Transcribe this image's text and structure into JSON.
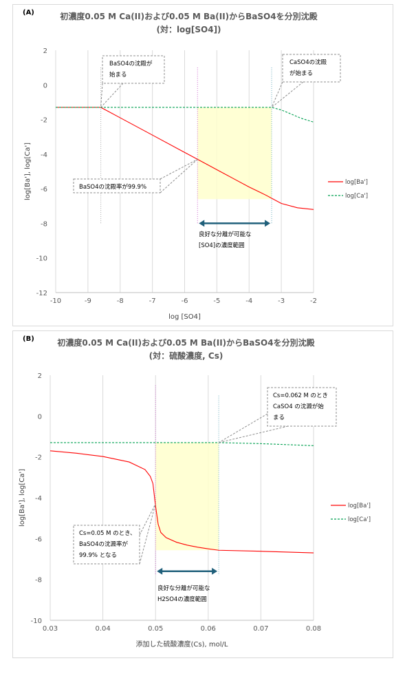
{
  "chart_data": [
    {
      "type": "line",
      "panel_tag": "(A)",
      "title": "初濃度0.05 M Ca(II)および0.05 M Ba(II)からBaSO4を分別沈殿",
      "subtitle": "(対：log[SO4])",
      "xlabel": "log [SO4]",
      "ylabel": "log[Ba'], log[Ca']",
      "xlim": [
        -10,
        -2
      ],
      "ylim": [
        -12,
        2
      ],
      "xticks": [
        "-10",
        "-9",
        "-8",
        "-7",
        "-6",
        "-5",
        "-4",
        "-3",
        "-2"
      ],
      "yticks": [
        "2",
        "0",
        "-2",
        "-4",
        "-6",
        "-8",
        "-10",
        "-12"
      ],
      "grid": "vertical",
      "legend_position": "right",
      "series": [
        {
          "name": "log[Ba']",
          "color": "#ff0000",
          "style": "solid",
          "x": [
            -10,
            -8.6,
            -8,
            -7,
            -6,
            -5.6,
            -5,
            -4.5,
            -4,
            -3.5,
            -3.3,
            -3,
            -2.5,
            -2
          ],
          "y": [
            -1.3,
            -1.3,
            -1.9,
            -2.9,
            -3.9,
            -4.3,
            -4.9,
            -5.4,
            -5.9,
            -6.35,
            -6.55,
            -6.85,
            -7.1,
            -7.2
          ]
        },
        {
          "name": "log[Ca']",
          "color": "#00a050",
          "style": "dashed",
          "x": [
            -10,
            -3.3,
            -3,
            -2.7,
            -2.4,
            -2
          ],
          "y": [
            -1.3,
            -1.3,
            -1.45,
            -1.68,
            -1.92,
            -2.15
          ]
        }
      ],
      "shaded_region": {
        "x": [
          -5.6,
          -3.3
        ],
        "y": [
          -6.6,
          -1.3
        ],
        "color": "#ffffcc"
      },
      "vertical_markers": [
        {
          "x": -8.6,
          "color": "#a6a6a6",
          "y": [
            -8,
            1
          ]
        },
        {
          "x": -5.6,
          "color": "#cc66cc",
          "y": [
            -8,
            1
          ]
        },
        {
          "x": -3.3,
          "color": "#66aabb",
          "y": [
            -8,
            1
          ]
        }
      ],
      "range_arrow": {
        "x": [
          -5.6,
          -3.3
        ],
        "y": -8,
        "color": "#1f5f7a"
      },
      "annotations": [
        {
          "lines": [
            "BaSO4の沈殿が",
            "始まる"
          ]
        },
        {
          "lines": [
            "CaSO4の沈殿",
            "が始まる"
          ]
        },
        {
          "lines": [
            "BaSO4の沈殿率が99.9%"
          ]
        },
        {
          "lines": [
            "良好な分離が可能な",
            "[SO4]の濃度範囲"
          ]
        }
      ]
    },
    {
      "type": "line",
      "panel_tag": "(B)",
      "title": "初濃度0.05 M Ca(II)および0.05 M Ba(II)からBaSO4を分別沈殿",
      "subtitle": "(対：硫酸濃度, Cs)",
      "xlabel": "添加した硫酸濃度(Cs), mol/L",
      "ylabel": "log[Ba'], log[Ca']",
      "xlim": [
        0.03,
        0.08
      ],
      "ylim": [
        -10,
        2
      ],
      "xticks": [
        "0.03",
        "0.04",
        "0.05",
        "0.06",
        "0.07",
        "0.08"
      ],
      "yticks": [
        "2",
        "0",
        "-2",
        "-4",
        "-6",
        "-8",
        "-10"
      ],
      "grid": "vertical",
      "legend_position": "right",
      "series": [
        {
          "name": "log[Ba']",
          "color": "#ff0000",
          "style": "solid",
          "x": [
            0.03,
            0.035,
            0.04,
            0.045,
            0.048,
            0.049,
            0.0495,
            0.05,
            0.0505,
            0.051,
            0.052,
            0.054,
            0.056,
            0.058,
            0.06,
            0.062,
            0.07,
            0.08
          ],
          "y": [
            -1.7,
            -1.82,
            -1.98,
            -2.25,
            -2.62,
            -2.95,
            -3.3,
            -4.4,
            -5.3,
            -5.7,
            -5.95,
            -6.18,
            -6.32,
            -6.42,
            -6.5,
            -6.57,
            -6.62,
            -6.7
          ]
        },
        {
          "name": "log[Ca']",
          "color": "#00a050",
          "style": "dashed",
          "x": [
            0.03,
            0.062,
            0.07,
            0.08
          ],
          "y": [
            -1.3,
            -1.3,
            -1.35,
            -1.45
          ]
        }
      ],
      "shaded_region": {
        "x": [
          0.05,
          0.062
        ],
        "y": [
          -6.57,
          -1.3
        ],
        "color": "#ffffcc"
      },
      "vertical_markers": [
        {
          "x": 0.05,
          "color": "#cc66cc",
          "y": [
            -7.8,
            1.5
          ]
        },
        {
          "x": 0.062,
          "color": "#66aabb",
          "y": [
            -7.8,
            1.0
          ]
        }
      ],
      "range_arrow": {
        "x": [
          0.05,
          0.062
        ],
        "y": -7.6,
        "color": "#1f5f7a"
      },
      "annotations": [
        {
          "lines": [
            "Cs=0.062 M のとき",
            "CaSO4 の沈澱が始",
            "まる"
          ]
        },
        {
          "lines": [
            "Cs=0.05 M のとき、",
            "BaSO4の沈澱率が",
            "99.9% となる"
          ]
        },
        {
          "lines": [
            "良好な分離が可能な",
            "H2SO4の濃度範囲"
          ]
        }
      ]
    }
  ]
}
